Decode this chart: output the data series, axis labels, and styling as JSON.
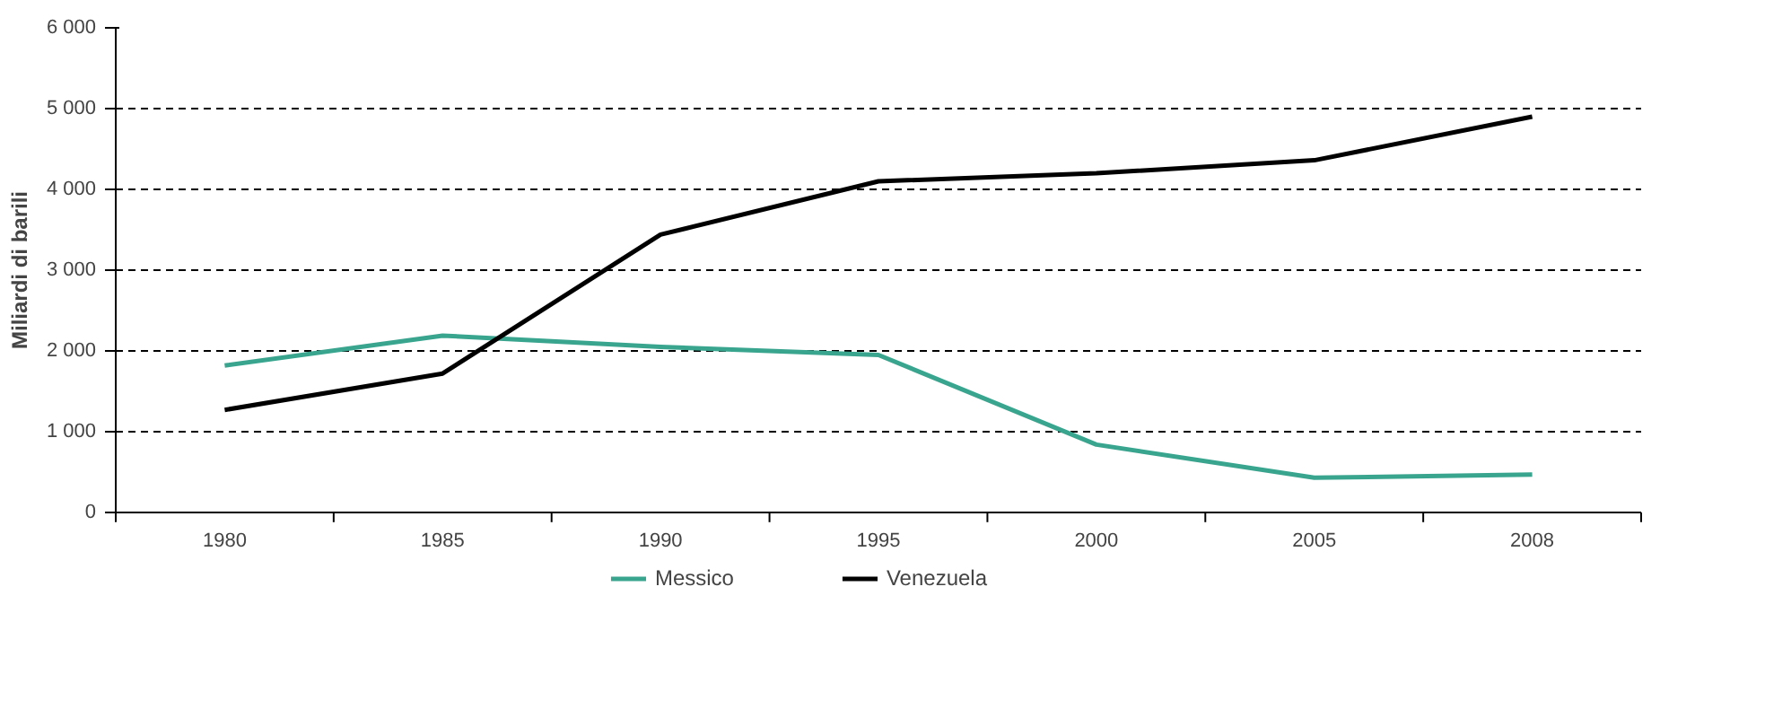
{
  "chart_data": {
    "type": "line",
    "ylabel": "Miliardi di barili",
    "categories": [
      "1980",
      "1985",
      "1990",
      "1995",
      "2000",
      "2005",
      "2008"
    ],
    "series": [
      {
        "name": "Messico",
        "color": "#3aa58f",
        "values": [
          1820,
          2190,
          2050,
          1950,
          840,
          430,
          470
        ]
      },
      {
        "name": "Venezuela",
        "color": "#000000",
        "values": [
          1270,
          1720,
          3440,
          4100,
          4200,
          4360,
          4900
        ]
      }
    ],
    "ylim": [
      0,
      6000
    ],
    "yticks": [
      0,
      {
        "value": 1000,
        "label": "1 000"
      },
      {
        "value": 2000,
        "label": "2 000"
      },
      {
        "value": 3000,
        "label": "3 000"
      },
      {
        "value": 4000,
        "label": "4 000"
      },
      {
        "value": 5000,
        "label": "5 000"
      },
      {
        "value": 6000,
        "label": "6 000"
      }
    ],
    "grid": "y",
    "legend": "bottom",
    "marker": "none",
    "line_style": "solid"
  }
}
